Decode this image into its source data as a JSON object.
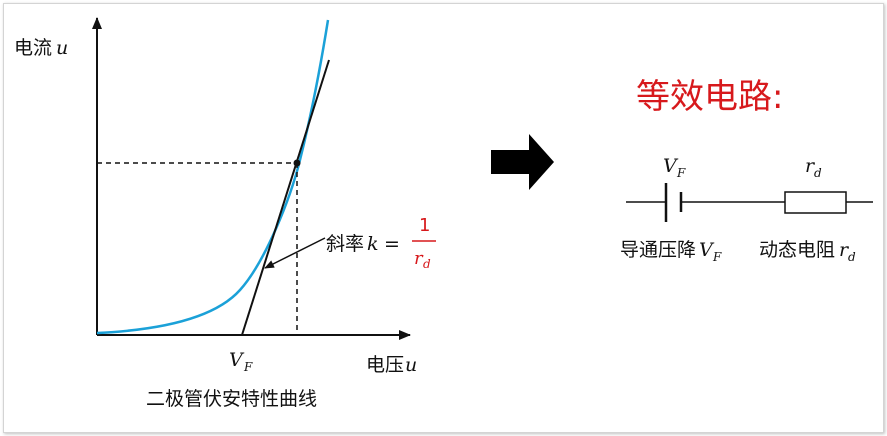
{
  "graph": {
    "y_axis_label": "电流",
    "y_axis_var": "u",
    "x_axis_label": "电压",
    "x_axis_var": "u",
    "vf_label": "V",
    "vf_sub": "F",
    "slope_label": "斜率",
    "slope_var": "k",
    "slope_eq": "=",
    "slope_num": "1",
    "slope_den": "r",
    "slope_den_sub": "d",
    "caption": "二极管伏安特性曲线",
    "curve_color": "#1ba1d8",
    "accent_color": "#d7191c"
  },
  "circuit": {
    "title": "等效电路:",
    "battery_label": "V",
    "battery_sub": "F",
    "resistor_label": "r",
    "resistor_sub": "d",
    "battery_caption": "导通压降",
    "battery_caption_var": "V",
    "battery_caption_sub": "F",
    "resistor_caption": "动态电阻",
    "resistor_caption_var": "r",
    "resistor_caption_sub": "d"
  }
}
